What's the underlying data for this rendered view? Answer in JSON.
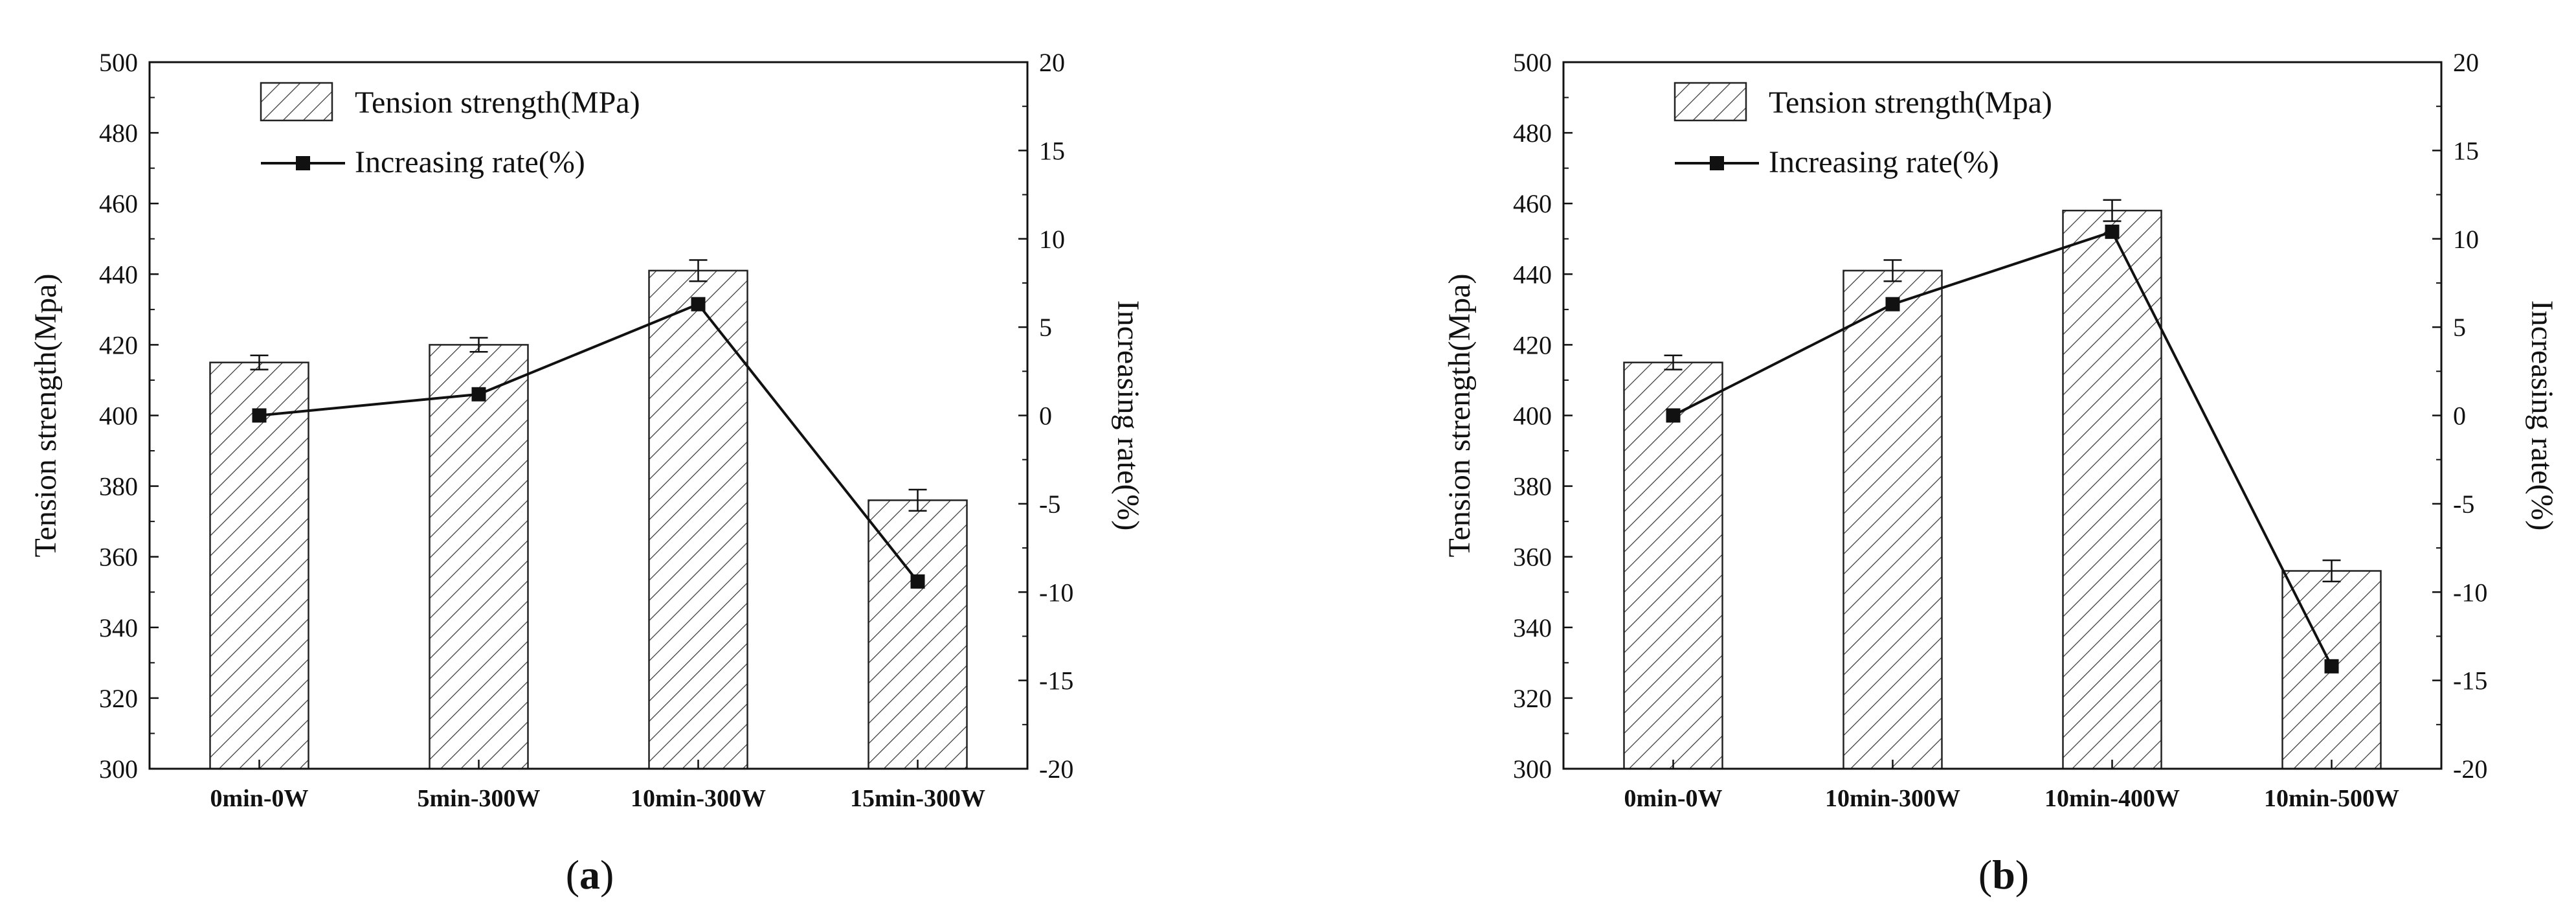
{
  "figure_title": "",
  "chart_data": [
    {
      "type": "bar+line",
      "panel_letter": "a",
      "categories": [
        "0min-0W",
        "5min-300W",
        "10min-300W",
        "15min-300W"
      ],
      "bar_series": {
        "name": "Tension strength(MPa)",
        "values": [
          415,
          420,
          441,
          376
        ],
        "errors": [
          2,
          2,
          3,
          3
        ]
      },
      "line_series": {
        "name": "Increasing rate(%)",
        "values": [
          0,
          1.2,
          6.3,
          -9.4
        ]
      },
      "ylabel_left": "Tension strength(Mpa)",
      "ylabel_right": "Increasing rate(%)",
      "ylim_left": [
        300,
        500
      ],
      "ylim_right": [
        -20,
        20
      ],
      "yticks_left": [
        300,
        320,
        340,
        360,
        380,
        400,
        420,
        440,
        460,
        480,
        500
      ],
      "yticks_right": [
        -20,
        -15,
        -10,
        -5,
        0,
        5,
        10,
        15,
        20
      ],
      "legend_position": "top-left"
    },
    {
      "type": "bar+line",
      "panel_letter": "b",
      "categories": [
        "0min-0W",
        "10min-300W",
        "10min-400W",
        "10min-500W"
      ],
      "bar_series": {
        "name": "Tension strength(Mpa)",
        "values": [
          415,
          441,
          458,
          356
        ],
        "errors": [
          2,
          3,
          3,
          3
        ]
      },
      "line_series": {
        "name": "Increasing rate(%)",
        "values": [
          0,
          6.3,
          10.4,
          -14.2
        ]
      },
      "ylabel_left": "Tension strength(Mpa)",
      "ylabel_right": "Increasing rate(%)",
      "ylim_left": [
        300,
        500
      ],
      "ylim_right": [
        -20,
        20
      ],
      "yticks_left": [
        300,
        320,
        340,
        360,
        380,
        400,
        420,
        440,
        460,
        480,
        500
      ],
      "yticks_right": [
        -20,
        -15,
        -10,
        -5,
        0,
        5,
        10,
        15,
        20
      ],
      "legend_position": "top-left"
    }
  ]
}
